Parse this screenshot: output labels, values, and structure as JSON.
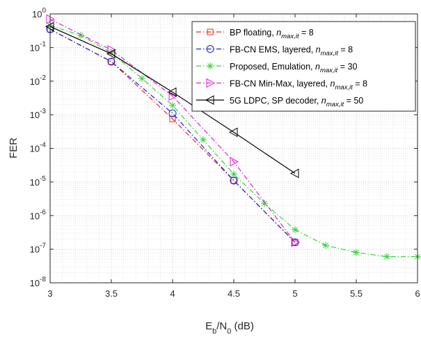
{
  "chart_data": {
    "type": "line",
    "title": "",
    "xlabel": {
      "base": "E",
      "sub1": "b",
      "mid": "/N",
      "sub2": "0",
      "tail": " (dB)"
    },
    "ylabel": "FER",
    "y_scale": "log",
    "xlim": [
      3,
      6
    ],
    "ylim": [
      1e-08,
      1
    ],
    "x_ticks": [
      "3",
      "3.5",
      "4",
      "4.5",
      "5",
      "5.5",
      "6"
    ],
    "y_ticks": [
      {
        "base": "10",
        "exp": "0"
      },
      {
        "base": "10",
        "exp": "-1"
      },
      {
        "base": "10",
        "exp": "-2"
      },
      {
        "base": "10",
        "exp": "-3"
      },
      {
        "base": "10",
        "exp": "-4"
      },
      {
        "base": "10",
        "exp": "-5"
      },
      {
        "base": "10",
        "exp": "-6"
      },
      {
        "base": "10",
        "exp": "-7"
      },
      {
        "base": "10",
        "exp": "-8"
      }
    ],
    "grid": true,
    "minor_grid": true,
    "legend_position": "top-right",
    "series": [
      {
        "name": "BP floating,",
        "n_label": "n",
        "n_sub": "max,it",
        "n_value": "= 8",
        "color": "#e8281e",
        "dash": "dashdot",
        "marker": "square",
        "x": [
          3,
          3.5,
          4,
          4.5,
          5
        ],
        "y": [
          0.35,
          0.038,
          0.00075,
          1.1e-05,
          1.6e-07
        ]
      },
      {
        "name": "FB-CN EMS, layered,",
        "n_label": "n",
        "n_sub": "max,it",
        "n_value": "= 8",
        "color": "#1f1fd6",
        "dash": "dashdot",
        "marker": "circle",
        "x": [
          3,
          3.5,
          4,
          4.5,
          5
        ],
        "y": [
          0.35,
          0.038,
          0.0011,
          1.1e-05,
          1.6e-07
        ]
      },
      {
        "name": "Proposed, Emulation,",
        "n_label": "n",
        "n_sub": "max,it",
        "n_value": "= 30",
        "color": "#3ad23a",
        "dash": "dashdot",
        "marker": "asterisk",
        "x": [
          3,
          3.25,
          3.5,
          3.75,
          4,
          4.25,
          4.5,
          4.75,
          5,
          5.25,
          5.5,
          5.75,
          6
        ],
        "y": [
          0.45,
          0.23,
          0.07,
          0.012,
          0.0019,
          0.00018,
          1.7e-05,
          2.3e-06,
          3.8e-07,
          1.3e-07,
          8e-08,
          6e-08,
          6e-08
        ]
      },
      {
        "name": "FB-CN Min-Max, layered,",
        "n_label": "n",
        "n_sub": "max,it",
        "n_value": "= 8",
        "color": "#e020d8",
        "dash": "dashdot",
        "marker": "triangle-right",
        "x": [
          3,
          3.5,
          4,
          4.5,
          5
        ],
        "y": [
          0.7,
          0.085,
          0.0036,
          4e-05,
          1.6e-07
        ]
      },
      {
        "name": "5G LDPC, SP decoder,",
        "n_label": "n",
        "n_sub": "max,it",
        "n_value": "= 50",
        "color": "#000000",
        "dash": "solid",
        "marker": "triangle-left",
        "x": [
          3,
          3.5,
          4,
          4.5,
          5
        ],
        "y": [
          0.42,
          0.065,
          0.0047,
          0.0003,
          1.8e-05
        ]
      }
    ]
  }
}
